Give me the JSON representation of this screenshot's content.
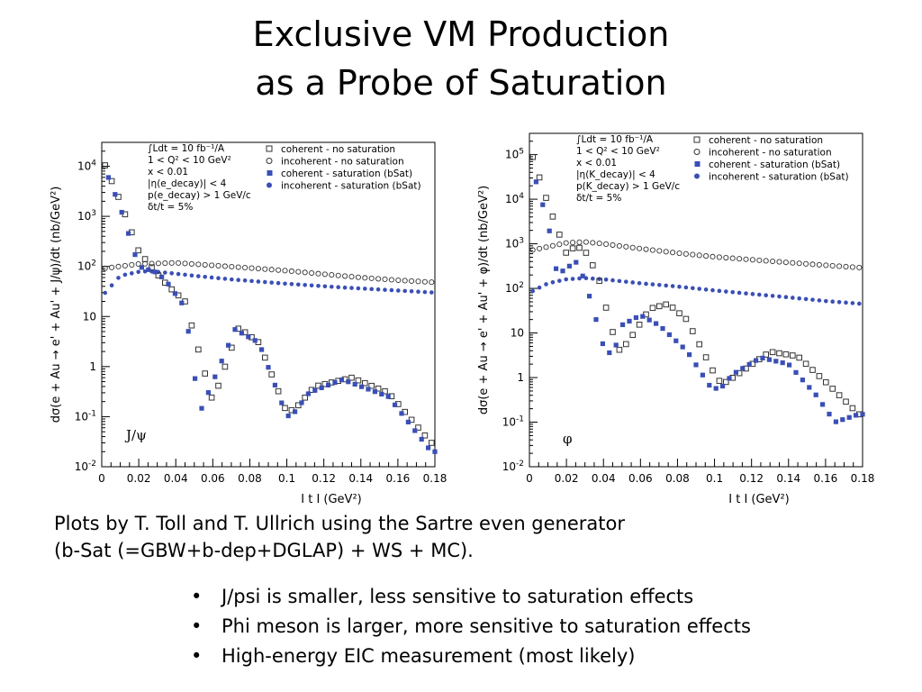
{
  "slide": {
    "title_line1": "Exclusive VM Production",
    "title_line2": "as a Probe of Saturation",
    "caption_line1": "Plots by T. Toll and T. Ullrich  using the Sartre even generator",
    "caption_line2": "(b-Sat (=GBW+b-dep+DGLAP) + WS + MC).",
    "bullets": [
      "J/psi is smaller, less sensitive to saturation effects",
      "Phi meson is larger, more sensitive to saturation effects",
      "High-energy EIC measurement (most likely)"
    ],
    "bullet_glyph": "•"
  },
  "colors": {
    "saturation": "#3a4fb5",
    "nosat": "#333333"
  },
  "legend_entries": [
    "coherent - no saturation",
    "incoherent - no saturation",
    "coherent - saturation (bSat)",
    "incoherent - saturation (bSat)"
  ],
  "legend_markers": [
    "open-square",
    "open-circle",
    "filled-square",
    "filled-circle"
  ],
  "chart_data": [
    {
      "type": "scatter",
      "panel": "J/psi",
      "label": "J/ψ",
      "yscale": "log",
      "xlim": [
        0,
        0.18
      ],
      "ylim": [
        0.01,
        30000
      ],
      "xlabel": "I t I (GeV²)",
      "ylabel": "dσ(e + Au → e' + Au' + J/ψ)/dt (nb/GeV²)",
      "xticks": [
        "0",
        "0.02",
        "0.04",
        "0.06",
        "0.08",
        "0.1",
        "0.12",
        "0.14",
        "0.16",
        "0.18"
      ],
      "yticks": [
        {
          "v": 0.01,
          "b": "10",
          "e": "-2"
        },
        {
          "v": 0.1,
          "b": "10",
          "e": "-1"
        },
        {
          "v": 1,
          "b": "1",
          "e": ""
        },
        {
          "v": 10,
          "b": "10",
          "e": ""
        },
        {
          "v": 100,
          "b": "10",
          "e": "2"
        },
        {
          "v": 1000,
          "b": "10",
          "e": "3"
        },
        {
          "v": 10000,
          "b": "10",
          "e": "4"
        }
      ],
      "annotations": [
        "∫Ldt = 10 fb⁻¹/A",
        "1 < Q² < 10 GeV²",
        "x < 0.01",
        "|η(e_decay)| < 4",
        "p(e_decay) > 1 GeV/c",
        "δt/t = 5%"
      ],
      "curves": {
        "coh_nosat": {
          "x": [
            0,
            0.01,
            0.02,
            0.03,
            0.036,
            0.045,
            0.06,
            0.074,
            0.085,
            0.1,
            0.105,
            0.115,
            0.135,
            0.155,
            0.178
          ],
          "y": [
            15000,
            2000,
            200,
            70,
            40,
            20,
            0.2,
            6,
            3,
            0.12,
            0.15,
            0.4,
            0.6,
            0.3,
            0.03
          ]
        },
        "coh_sat": {
          "x": [
            0,
            0.01,
            0.02,
            0.03,
            0.035,
            0.045,
            0.053,
            0.072,
            0.085,
            0.1,
            0.104,
            0.112,
            0.13,
            0.155,
            0.178
          ],
          "y": [
            13000,
            1500,
            100,
            75,
            50,
            15,
            0.12,
            5.5,
            3,
            0.1,
            0.12,
            0.3,
            0.55,
            0.25,
            0.02
          ]
        },
        "incoh_nosat": {
          "x": [
            0,
            0.02,
            0.04,
            0.06,
            0.08,
            0.1,
            0.12,
            0.14,
            0.16,
            0.18
          ],
          "y": [
            90,
            112,
            118,
            105,
            93,
            82,
            70,
            60,
            53,
            48
          ]
        },
        "incoh_sat": {
          "x": [
            0,
            0.01,
            0.02,
            0.025,
            0.035,
            0.05,
            0.07,
            0.1,
            0.13,
            0.16,
            0.18
          ],
          "y": [
            25,
            65,
            78,
            80,
            75,
            65,
            55,
            45,
            38,
            33,
            30
          ]
        }
      }
    },
    {
      "type": "scatter",
      "panel": "phi",
      "label": "φ",
      "yscale": "log",
      "xlim": [
        0,
        0.18
      ],
      "ylim": [
        0.01,
        300000
      ],
      "xlabel": "I t I (GeV²)",
      "ylabel": "dσ(e + Au → e' + Au' + φ)/dt (nb/GeV²)",
      "xticks": [
        "0",
        "0.02",
        "0.04",
        "0.06",
        "0.08",
        "0.1",
        "0.12",
        "0.14",
        "0.16",
        "0.18"
      ],
      "yticks": [
        {
          "v": 0.01,
          "b": "10",
          "e": "-2"
        },
        {
          "v": 0.1,
          "b": "10",
          "e": "-1"
        },
        {
          "v": 1,
          "b": "1",
          "e": ""
        },
        {
          "v": 10,
          "b": "10",
          "e": ""
        },
        {
          "v": 100,
          "b": "10",
          "e": "2"
        },
        {
          "v": 1000,
          "b": "10",
          "e": "3"
        },
        {
          "v": 10000,
          "b": "10",
          "e": "4"
        },
        {
          "v": 100000,
          "b": "10",
          "e": "5"
        }
      ],
      "annotations": [
        "∫Ldt = 10 fb⁻¹/A",
        "1 < Q² < 10 GeV²",
        "x < 0.01",
        "|η(K_decay)| < 4",
        "p(K_decay) > 1 GeV/c",
        "δt/t = 5%"
      ],
      "curves": {
        "coh_nosat": {
          "x": [
            0,
            0.01,
            0.02,
            0.025,
            0.03,
            0.037,
            0.043,
            0.048,
            0.053,
            0.065,
            0.075,
            0.085,
            0.1,
            0.104,
            0.11,
            0.13,
            0.145,
            0.16,
            0.178
          ],
          "y": [
            150000,
            8000,
            600,
            900,
            700,
            200,
            20,
            4,
            6,
            35,
            45,
            20,
            1.2,
            0.7,
            1,
            3.8,
            3,
            0.8,
            0.15
          ]
        },
        "coh_sat": {
          "x": [
            0,
            0.01,
            0.015,
            0.025,
            0.03,
            0.036,
            0.04,
            0.045,
            0.05,
            0.06,
            0.07,
            0.085,
            0.098,
            0.103,
            0.11,
            0.125,
            0.14,
            0.155,
            0.165,
            0.178
          ],
          "y": [
            80000,
            3000,
            200,
            400,
            150,
            20,
            5,
            3,
            15,
            25,
            15,
            4,
            0.6,
            0.55,
            1.2,
            2.8,
            2,
            0.4,
            0.1,
            0.15
          ]
        },
        "incoh_nosat": {
          "x": [
            0,
            0.02,
            0.03,
            0.04,
            0.06,
            0.08,
            0.1,
            0.12,
            0.14,
            0.16,
            0.18
          ],
          "y": [
            700,
            1050,
            1100,
            1000,
            780,
            620,
            510,
            440,
            380,
            330,
            290
          ]
        },
        "incoh_sat": {
          "x": [
            0,
            0.01,
            0.02,
            0.03,
            0.04,
            0.06,
            0.08,
            0.1,
            0.12,
            0.14,
            0.16,
            0.18
          ],
          "y": [
            80,
            130,
            160,
            170,
            160,
            130,
            110,
            90,
            75,
            63,
            52,
            45
          ]
        }
      }
    }
  ]
}
